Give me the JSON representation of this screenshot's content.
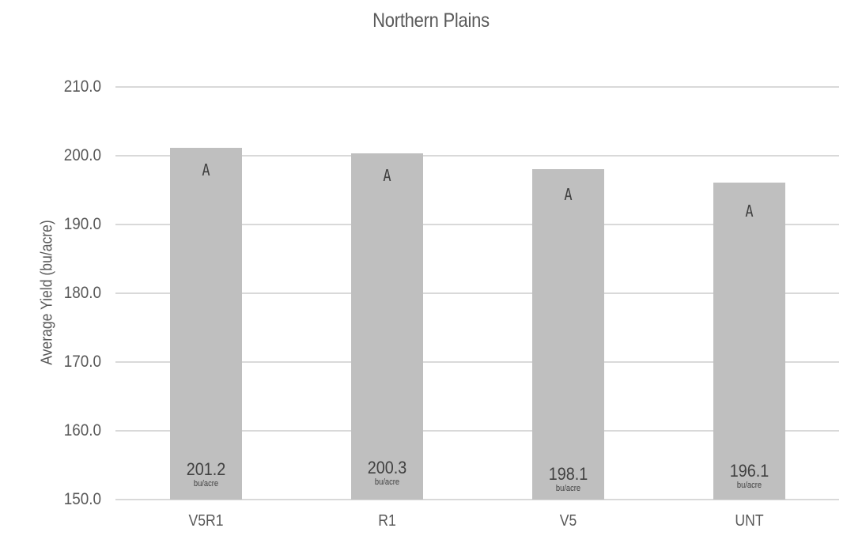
{
  "chart_data": {
    "type": "bar",
    "title": "Northern Plains",
    "xlabel": "",
    "ylabel": "Average Yield (bu/acre)",
    "ylim": [
      150,
      210
    ],
    "yticks": [
      "150.0",
      "160.0",
      "170.0",
      "180.0",
      "190.0",
      "200.0",
      "210.0"
    ],
    "categories": [
      "V5R1",
      "R1",
      "V5",
      "UNT"
    ],
    "values": [
      201.2,
      200.3,
      198.1,
      196.1
    ],
    "value_labels": [
      "201.2",
      "200.3",
      "198.1",
      "196.1"
    ],
    "unit_label": "bu/acre",
    "significance_letters": [
      "A",
      "A",
      "A",
      "A"
    ],
    "grid": true,
    "bar_color": "#bfbfbf",
    "legend": null
  }
}
